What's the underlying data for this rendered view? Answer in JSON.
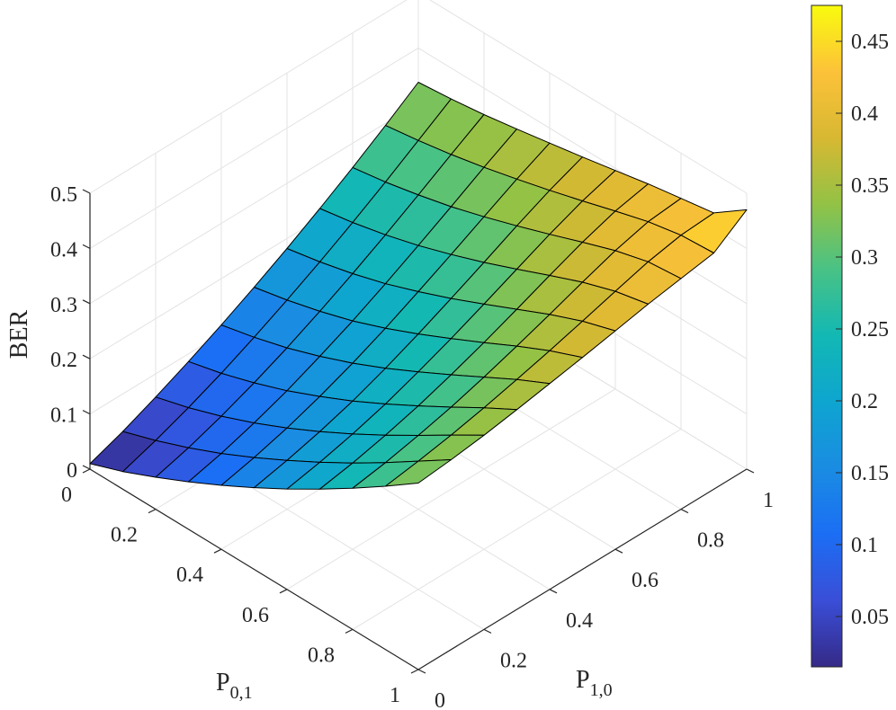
{
  "chart_data": {
    "type": "surface",
    "zlabel": "BER",
    "xlabel": {
      "main": "P",
      "sub": "0,1"
    },
    "ylabel": {
      "main": "P",
      "sub": "1,0"
    },
    "x": [
      0,
      0.1,
      0.2,
      0.3,
      0.4,
      0.5,
      0.6,
      0.7,
      0.8,
      0.9,
      1
    ],
    "y": [
      0,
      0.1,
      0.2,
      0.3,
      0.4,
      0.5,
      0.6,
      0.7,
      0.8,
      0.9,
      1
    ],
    "z": [
      [
        0.01,
        0.032,
        0.058,
        0.086,
        0.116,
        0.148,
        0.182,
        0.218,
        0.256,
        0.296,
        0.338
      ],
      [
        0.032,
        0.052,
        0.075,
        0.101,
        0.13,
        0.161,
        0.194,
        0.229,
        0.266,
        0.305,
        0.344
      ],
      [
        0.058,
        0.075,
        0.096,
        0.12,
        0.147,
        0.177,
        0.209,
        0.243,
        0.279,
        0.316,
        0.352
      ],
      [
        0.086,
        0.101,
        0.12,
        0.142,
        0.168,
        0.196,
        0.227,
        0.26,
        0.294,
        0.329,
        0.362
      ],
      [
        0.116,
        0.13,
        0.147,
        0.168,
        0.192,
        0.219,
        0.249,
        0.28,
        0.312,
        0.344,
        0.373
      ],
      [
        0.148,
        0.161,
        0.177,
        0.196,
        0.219,
        0.245,
        0.273,
        0.302,
        0.332,
        0.36,
        0.384
      ],
      [
        0.182,
        0.194,
        0.209,
        0.227,
        0.249,
        0.273,
        0.299,
        0.326,
        0.353,
        0.377,
        0.396
      ],
      [
        0.218,
        0.229,
        0.243,
        0.26,
        0.28,
        0.302,
        0.326,
        0.351,
        0.375,
        0.395,
        0.408
      ],
      [
        0.256,
        0.266,
        0.279,
        0.294,
        0.312,
        0.332,
        0.353,
        0.375,
        0.396,
        0.412,
        0.418
      ],
      [
        0.296,
        0.305,
        0.316,
        0.329,
        0.344,
        0.36,
        0.377,
        0.395,
        0.412,
        0.424,
        0.428
      ],
      [
        0.338,
        0.344,
        0.352,
        0.362,
        0.373,
        0.384,
        0.396,
        0.408,
        0.418,
        0.428,
        0.47
      ]
    ],
    "xticks": [
      "0",
      "0.2",
      "0.4",
      "0.6",
      "0.8",
      "1"
    ],
    "yticks": [
      "0",
      "0.2",
      "0.4",
      "0.6",
      "0.8",
      "1"
    ],
    "zticks": [
      "0",
      "0.1",
      "0.2",
      "0.3",
      "0.4",
      "0.5"
    ],
    "zlim": [
      0,
      0.5
    ],
    "colorbar": {
      "colormap": "parula",
      "ticks": [
        "0.05",
        "0.1",
        "0.15",
        "0.2",
        "0.25",
        "0.3",
        "0.35",
        "0.4",
        "0.45"
      ],
      "range": [
        0.015,
        0.475
      ]
    },
    "grid": true,
    "view": "isometric-3d"
  }
}
